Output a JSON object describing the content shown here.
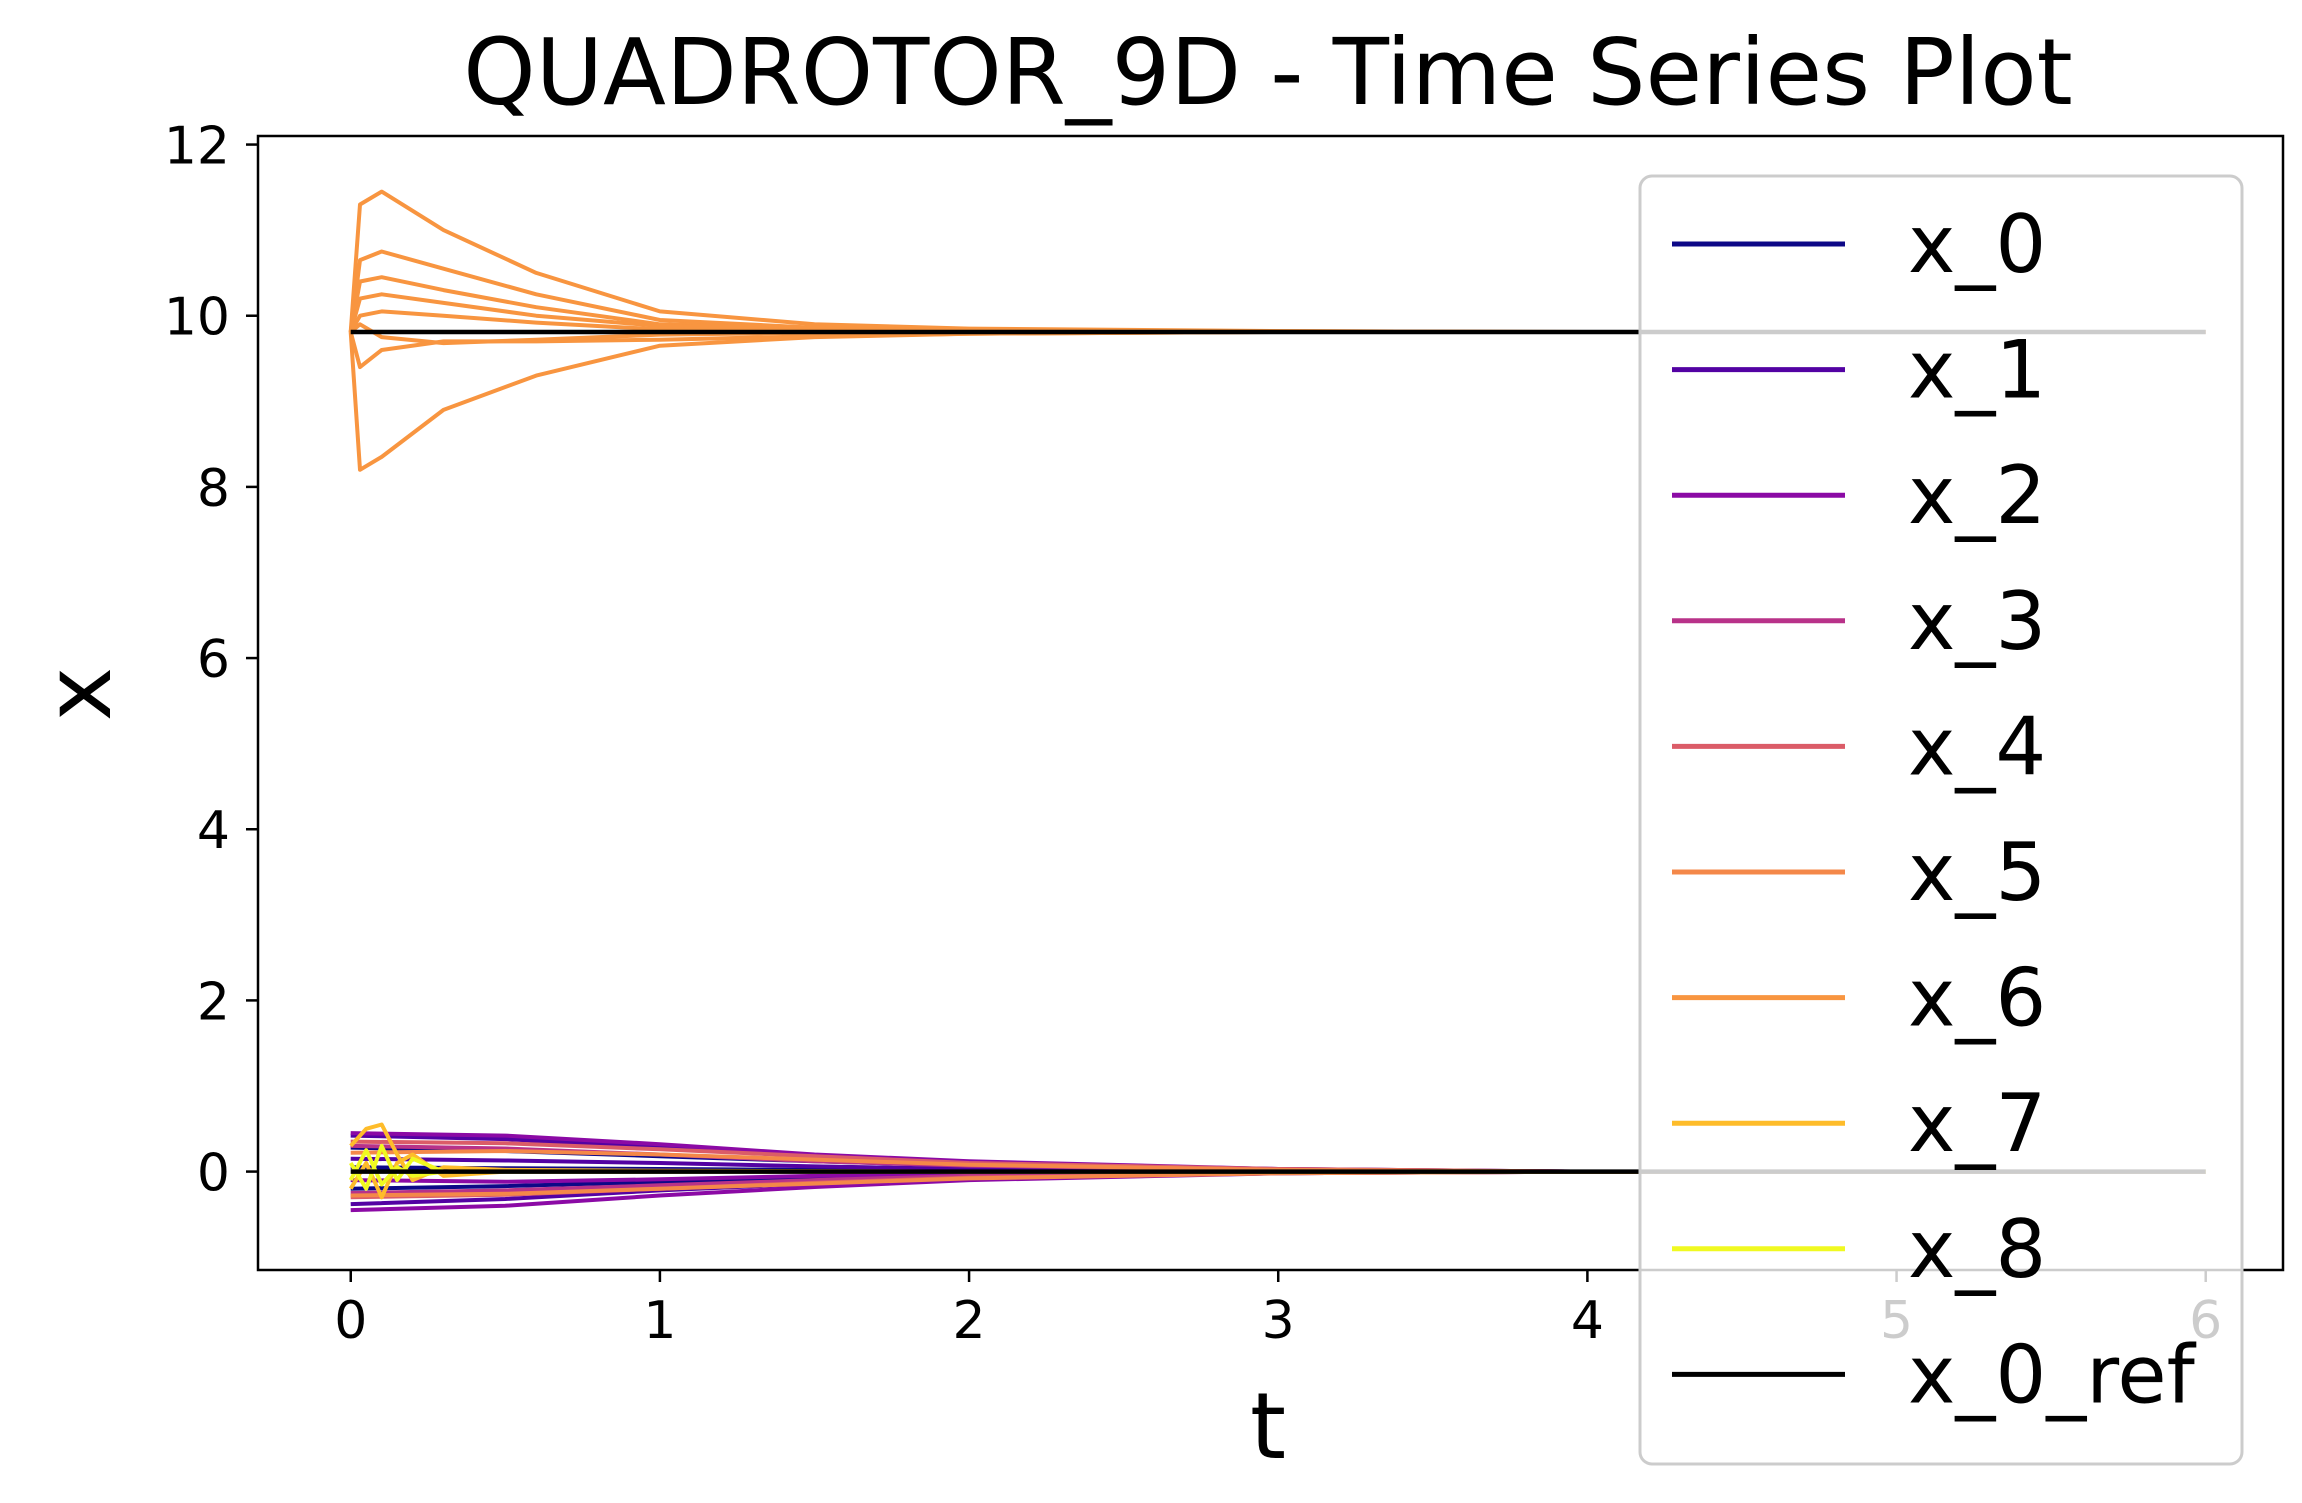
{
  "chart_data": {
    "type": "line",
    "title": "QUADROTOR_9D - Time Series Plot",
    "xlabel": "t",
    "ylabel": "x",
    "xlim": [
      -0.3,
      6.25
    ],
    "ylim": [
      -1.15,
      12.1
    ],
    "xticks": [
      0,
      1,
      2,
      3,
      4,
      5,
      6
    ],
    "yticks": [
      0,
      2,
      4,
      6,
      8,
      10,
      12
    ],
    "grid": false,
    "legend_position": "right",
    "series": [
      {
        "name": "x_0",
        "color": "#0d0887",
        "trajectories": [
          {
            "t": [
              0,
              0.5,
              1,
              1.5,
              2,
              3,
              4,
              6
            ],
            "v": [
              0.28,
              0.24,
              0.18,
              0.12,
              0.07,
              0.02,
              0.0,
              0.0
            ]
          },
          {
            "t": [
              0,
              0.5,
              1,
              1.5,
              2,
              3,
              4,
              6
            ],
            "v": [
              -0.2,
              -0.17,
              -0.12,
              -0.08,
              -0.05,
              -0.01,
              0.0,
              0.0
            ]
          },
          {
            "t": [
              0,
              0.5,
              1,
              1.5,
              2,
              3,
              4,
              6
            ],
            "v": [
              0.05,
              0.04,
              0.03,
              0.02,
              0.01,
              0.0,
              0.0,
              0.0
            ]
          }
        ]
      },
      {
        "name": "x_1",
        "color": "#5302a3",
        "trajectories": [
          {
            "t": [
              0,
              0.5,
              1,
              1.5,
              2,
              3,
              4,
              6
            ],
            "v": [
              0.42,
              0.38,
              0.28,
              0.18,
              0.1,
              0.03,
              0.0,
              0.0
            ]
          },
          {
            "t": [
              0,
              0.5,
              1,
              1.5,
              2,
              3,
              4,
              6
            ],
            "v": [
              -0.38,
              -0.32,
              -0.22,
              -0.14,
              -0.08,
              -0.02,
              0.0,
              0.0
            ]
          },
          {
            "t": [
              0,
              0.5,
              1,
              1.5,
              2,
              3,
              4,
              6
            ],
            "v": [
              0.15,
              0.13,
              0.1,
              0.06,
              0.03,
              0.01,
              0.0,
              0.0
            ]
          }
        ]
      },
      {
        "name": "x_2",
        "color": "#8b0aa5",
        "trajectories": [
          {
            "t": [
              0,
              0.5,
              1,
              1.5,
              2,
              3,
              4,
              6
            ],
            "v": [
              0.45,
              0.42,
              0.32,
              0.2,
              0.12,
              0.03,
              0.0,
              0.0
            ]
          },
          {
            "t": [
              0,
              0.5,
              1,
              1.5,
              2,
              3,
              4,
              6
            ],
            "v": [
              -0.45,
              -0.4,
              -0.28,
              -0.18,
              -0.1,
              -0.02,
              0.0,
              0.0
            ]
          },
          {
            "t": [
              0,
              0.5,
              1,
              1.5,
              2,
              3,
              4,
              6
            ],
            "v": [
              -0.1,
              -0.12,
              -0.09,
              -0.05,
              -0.03,
              -0.01,
              0.0,
              0.0
            ]
          }
        ]
      },
      {
        "name": "x_3",
        "color": "#b83289",
        "trajectories": [
          {
            "t": [
              0,
              0.5,
              1,
              1.5,
              2,
              3,
              4,
              6
            ],
            "v": [
              0.3,
              0.27,
              0.2,
              0.12,
              0.07,
              0.02,
              0.0,
              0.0
            ]
          },
          {
            "t": [
              0,
              0.5,
              1,
              1.5,
              2,
              3,
              4,
              6
            ],
            "v": [
              -0.25,
              -0.22,
              -0.16,
              -0.1,
              -0.05,
              -0.01,
              0.0,
              0.0
            ]
          }
        ]
      },
      {
        "name": "x_4",
        "color": "#db5c68",
        "trajectories": [
          {
            "t": [
              0,
              0.5,
              1,
              1.5,
              2,
              3,
              4,
              6
            ],
            "v": [
              0.35,
              0.33,
              0.26,
              0.18,
              0.1,
              0.03,
              0.0,
              0.0
            ]
          },
          {
            "t": [
              0,
              0.5,
              1,
              1.5,
              2,
              3,
              4,
              6
            ],
            "v": [
              -0.3,
              -0.27,
              -0.2,
              -0.13,
              -0.07,
              -0.02,
              0.0,
              0.0
            ]
          }
        ]
      },
      {
        "name": "x_5",
        "color": "#f48849",
        "trajectories": [
          {
            "t": [
              0,
              0.5,
              1,
              1.5,
              2,
              3,
              4,
              6
            ],
            "v": [
              0.22,
              0.24,
              0.2,
              0.14,
              0.08,
              0.02,
              0.0,
              0.0
            ]
          },
          {
            "t": [
              0,
              0.5,
              1,
              1.5,
              2,
              3,
              4,
              6
            ],
            "v": [
              -0.28,
              -0.26,
              -0.2,
              -0.14,
              -0.08,
              -0.02,
              0.0,
              0.0
            ]
          }
        ]
      },
      {
        "name": "x_6",
        "color": "#f89540",
        "trajectories": [
          {
            "t": [
              0,
              0.03,
              0.1,
              0.3,
              0.6,
              1.0,
              1.5,
              2,
              3,
              4,
              6
            ],
            "v": [
              9.81,
              11.3,
              11.45,
              11.0,
              10.5,
              10.05,
              9.9,
              9.85,
              9.82,
              9.81,
              9.81
            ]
          },
          {
            "t": [
              0,
              0.03,
              0.1,
              0.3,
              0.6,
              1.0,
              1.5,
              2,
              3,
              4,
              6
            ],
            "v": [
              9.81,
              8.2,
              8.35,
              8.9,
              9.3,
              9.65,
              9.75,
              9.79,
              9.81,
              9.81,
              9.81
            ]
          },
          {
            "t": [
              0,
              0.03,
              0.1,
              0.3,
              0.6,
              1.0,
              1.5,
              2,
              3,
              4,
              6
            ],
            "v": [
              9.81,
              10.65,
              10.75,
              10.55,
              10.25,
              9.95,
              9.86,
              9.83,
              9.82,
              9.81,
              9.81
            ]
          },
          {
            "t": [
              0,
              0.03,
              0.1,
              0.3,
              0.6,
              1.0,
              1.5,
              2,
              3,
              4,
              6
            ],
            "v": [
              9.81,
              10.4,
              10.45,
              10.3,
              10.1,
              9.9,
              9.85,
              9.82,
              9.81,
              9.81,
              9.81
            ]
          },
          {
            "t": [
              0,
              0.03,
              0.1,
              0.3,
              0.6,
              1.0,
              1.5,
              2,
              3,
              4,
              6
            ],
            "v": [
              9.81,
              10.2,
              10.25,
              10.15,
              10.0,
              9.88,
              9.83,
              9.82,
              9.81,
              9.81,
              9.81
            ]
          },
          {
            "t": [
              0,
              0.03,
              0.1,
              0.3,
              0.6,
              1.0,
              1.5,
              2,
              3,
              4,
              6
            ],
            "v": [
              9.81,
              9.4,
              9.6,
              9.7,
              9.7,
              9.72,
              9.76,
              9.79,
              9.81,
              9.81,
              9.81
            ]
          },
          {
            "t": [
              0,
              0.03,
              0.1,
              0.3,
              0.6,
              1.0,
              1.5,
              2,
              3,
              4,
              6
            ],
            "v": [
              9.81,
              10.0,
              10.05,
              10.0,
              9.92,
              9.84,
              9.82,
              9.82,
              9.81,
              9.81,
              9.81
            ]
          },
          {
            "t": [
              0,
              0.03,
              0.1,
              0.3,
              0.6,
              1.0,
              1.5,
              2,
              3,
              4,
              6
            ],
            "v": [
              9.81,
              9.9,
              9.75,
              9.68,
              9.72,
              9.78,
              9.8,
              9.81,
              9.81,
              9.81,
              9.81
            ]
          }
        ]
      },
      {
        "name": "x_7",
        "color": "#febc2a",
        "trajectories": [
          {
            "t": [
              0,
              0.05,
              0.1,
              0.15,
              0.2,
              0.3,
              0.5,
              1,
              2,
              6
            ],
            "v": [
              0.3,
              0.5,
              0.55,
              0.2,
              -0.1,
              0.05,
              0.02,
              0.01,
              0.0,
              0.0
            ]
          },
          {
            "t": [
              0,
              0.05,
              0.1,
              0.15,
              0.2,
              0.3,
              0.5,
              1,
              2,
              6
            ],
            "v": [
              -0.2,
              0.1,
              -0.3,
              0.1,
              0.2,
              -0.05,
              0.0,
              0.0,
              0.0,
              0.0
            ]
          }
        ]
      },
      {
        "name": "x_8",
        "color": "#f0f921",
        "trajectories": [
          {
            "t": [
              0,
              0.05,
              0.1,
              0.15,
              0.2,
              0.3,
              0.5,
              1,
              2,
              6
            ],
            "v": [
              0.1,
              -0.2,
              0.3,
              -0.1,
              0.15,
              0.0,
              0.0,
              0.0,
              0.0,
              0.0
            ]
          },
          {
            "t": [
              0,
              0.05,
              0.1,
              0.15,
              0.2,
              0.3,
              0.5,
              1,
              2,
              6
            ],
            "v": [
              -0.1,
              0.25,
              -0.15,
              0.05,
              -0.05,
              0.0,
              0.0,
              0.0,
              0.0,
              0.0
            ]
          }
        ]
      },
      {
        "name": "x_0_ref",
        "color": "#000000",
        "trajectories": [
          {
            "t": [
              0,
              6
            ],
            "v": [
              9.81,
              9.81
            ]
          },
          {
            "t": [
              0,
              6
            ],
            "v": [
              0.0,
              0.0
            ]
          }
        ]
      }
    ]
  }
}
